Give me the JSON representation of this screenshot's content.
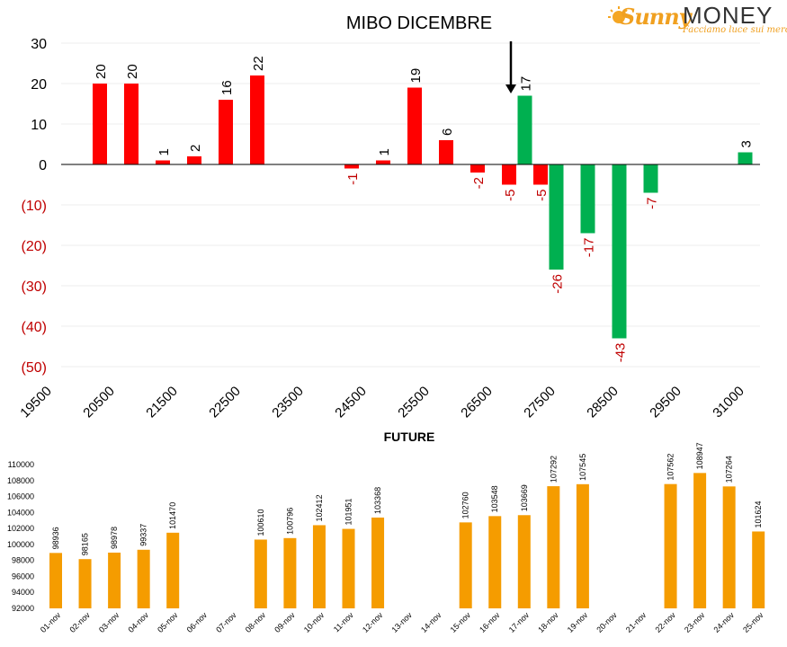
{
  "logo": {
    "word1": "Sunny",
    "word2": "MONEY",
    "tagline": "Facciamo luce sui mercati"
  },
  "chart_data": [
    {
      "type": "bar",
      "title": "MIBO DICEMBRE",
      "ylim": [
        -50,
        30
      ],
      "y_ticks": [
        "30",
        "20",
        "10",
        "0",
        "(10)",
        "(20)",
        "(30)",
        "(40)",
        "(50)"
      ],
      "x_tick_labels": [
        "19500",
        "20500",
        "21500",
        "22500",
        "23500",
        "24500",
        "25500",
        "26500",
        "27500",
        "28500",
        "29500",
        "31000"
      ],
      "grid": true,
      "annotation": "arrow pointing down at 26750",
      "colors": {
        "put": "#ff0000",
        "call": "#00b050",
        "negative_label": "#c00000"
      },
      "series": [
        {
          "color": "red",
          "points": [
            {
              "x": 20000,
              "y": 20
            },
            {
              "x": 20500,
              "y": 20
            },
            {
              "x": 21000,
              "y": 1
            },
            {
              "x": 21500,
              "y": 2
            },
            {
              "x": 22000,
              "y": 16
            },
            {
              "x": 22500,
              "y": 22
            },
            {
              "x": 24000,
              "y": -1
            },
            {
              "x": 24500,
              "y": 1
            },
            {
              "x": 25000,
              "y": 19
            },
            {
              "x": 25500,
              "y": 6
            },
            {
              "x": 26000,
              "y": -2
            },
            {
              "x": 26500,
              "y": -5
            },
            {
              "x": 27000,
              "y": -5
            }
          ]
        },
        {
          "color": "green",
          "points": [
            {
              "x": 26750,
              "y": 17
            },
            {
              "x": 27250,
              "y": -26
            },
            {
              "x": 27750,
              "y": -17
            },
            {
              "x": 28250,
              "y": -43
            },
            {
              "x": 28750,
              "y": -7
            },
            {
              "x": 30250,
              "y": 3
            }
          ]
        }
      ]
    },
    {
      "type": "bar",
      "title": "FUTURE",
      "ylim": [
        92000,
        110000
      ],
      "y_ticks": [
        "110000",
        "108000",
        "106000",
        "104000",
        "102000",
        "100000",
        "98000",
        "96000",
        "94000",
        "92000"
      ],
      "color": "#f59c00",
      "categories": [
        "01-nov",
        "02-nov",
        "03-nov",
        "04-nov",
        "05-nov",
        "06-nov",
        "07-nov",
        "08-nov",
        "09-nov",
        "10-nov",
        "11-nov",
        "12-nov",
        "13-nov",
        "14-nov",
        "15-nov",
        "16-nov",
        "17-nov",
        "18-nov",
        "19-nov",
        "20-nov",
        "21-nov",
        "22-nov",
        "23-nov",
        "24-nov",
        "25-nov"
      ],
      "values": [
        98936,
        98165,
        98978,
        99337,
        101470,
        null,
        null,
        100610,
        100796,
        102412,
        101951,
        103368,
        null,
        null,
        102760,
        103548,
        103669,
        107292,
        107545,
        null,
        null,
        107562,
        108947,
        107264,
        101624
      ]
    }
  ]
}
